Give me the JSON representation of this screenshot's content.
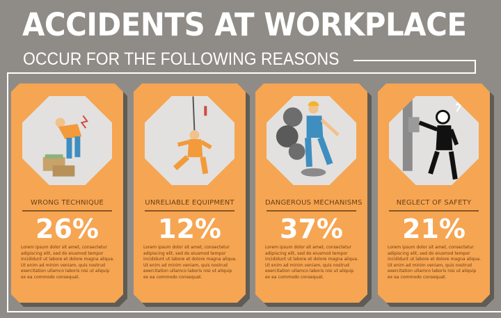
{
  "header": {
    "title": "ACCIDENTS AT WORKPLACE",
    "subtitle": "OCCUR FOR THE FOLLOWING REASONS"
  },
  "colors": {
    "background": "#8f8c87",
    "card": "#f6a552",
    "card_text": "#6b3e12",
    "illustration_bg": "#e2e1df"
  },
  "cards": [
    {
      "title": "WRONG TECHNIQUE",
      "percent": "26%",
      "value": 26,
      "icon": "worker-lifting-boxes-icon",
      "text": "Lorem ipsum dolor sit amet, consectetur adipiscing elit, sed do eiusmod tempor incididunt ut labore et dolore magna aliqua. Ut enim ad minim veniam, quis nostrud exercitation ullamco laboris nisi ut aliquip ex ea commodo consequat."
    },
    {
      "title": "UNRELIABLE EQUIPMENT",
      "percent": "12%",
      "value": 12,
      "icon": "falling-climber-icon",
      "text": "Lorem ipsum dolor sit amet, consectetur adipiscing elit, sed do eiusmod tempor incididunt ut labore et dolore magna aliqua. Ut enim ad minim veniam, quis nostrud exercitation ullamco laboris nisi ut aliquip ex ea commodo consequat."
    },
    {
      "title": "DANGEROUS MECHANISMS",
      "percent": "37%",
      "value": 37,
      "icon": "worker-gears-icon",
      "text": "Lorem ipsum dolor sit amet, consectetur adipiscing elit, sed do eiusmod tempor incididunt ut labore et dolore magna aliqua. Ut enim ad minim veniam, quis nostrud exercitation ullamco laboris nisi ut aliquip ex ea commodo consequat."
    },
    {
      "title": "NEGLECT OF SAFETY",
      "percent": "21%",
      "value": 21,
      "icon": "electric-shock-icon",
      "text": "Lorem ipsum dolor sit amet, consectetur adipiscing elit, sed do eiusmod tempor incididunt ut labore et dolore magna aliqua. Ut enim ad minim veniam, quis nostrud exercitation ullamco laboris nisi ut aliquip ex ea commodo consequat."
    }
  ]
}
